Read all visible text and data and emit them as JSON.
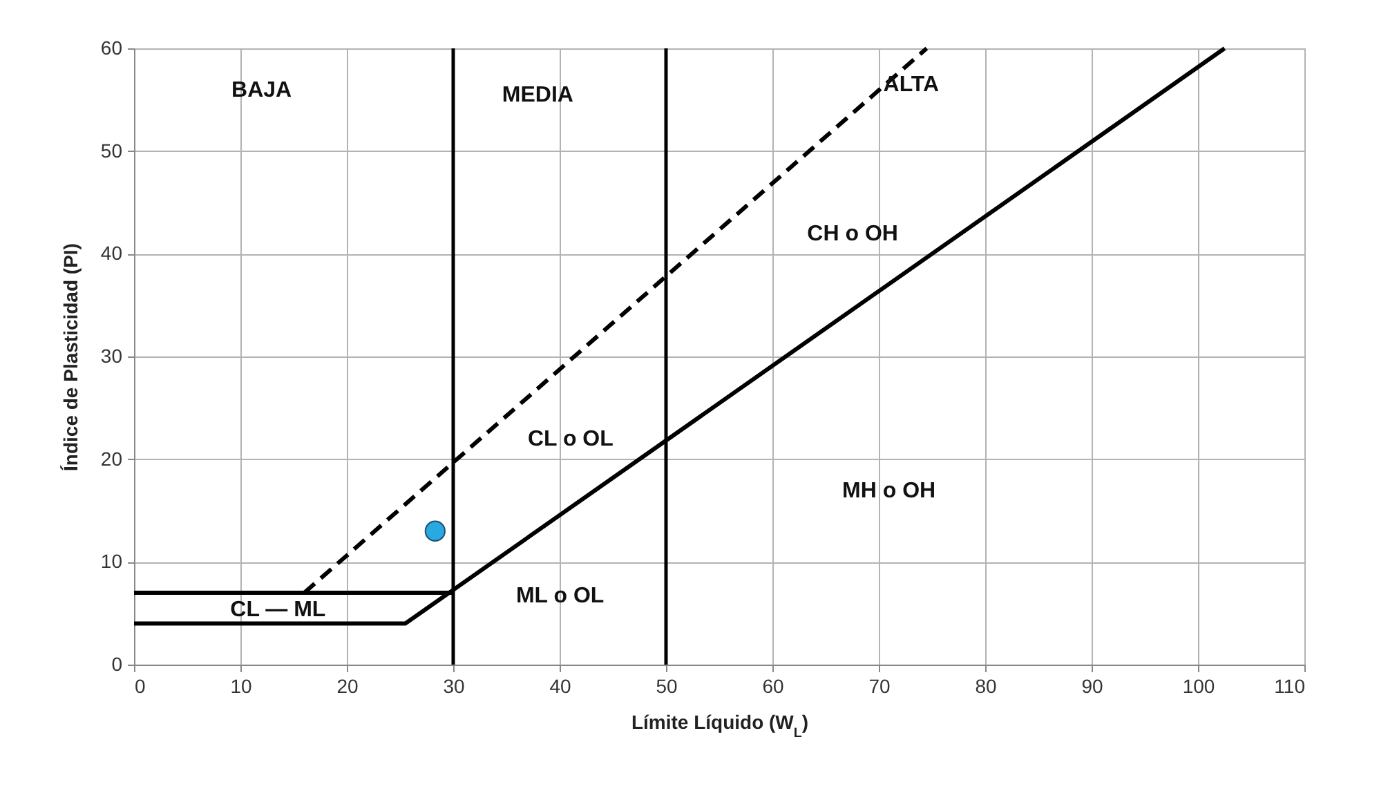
{
  "chart_data": {
    "type": "line",
    "xlabel": "Límite Líquido (W$_{L}$)",
    "ylabel": "Índice de Plasticidad (PI)",
    "xlim": [
      0,
      110
    ],
    "xticks": [
      0,
      10,
      20,
      30,
      40,
      50,
      60,
      70,
      80,
      90,
      100,
      110
    ],
    "ylim": [
      0,
      60
    ],
    "yticks": [
      0,
      10,
      20,
      30,
      40,
      50,
      60
    ],
    "grid": true,
    "series": [
      {
        "type": "line",
        "color": "#000000",
        "line_style": "solid",
        "x": [
          0,
          25.5,
          102.5
        ],
        "values": [
          4,
          4,
          60
        ]
      },
      {
        "type": "line",
        "color": "#000000",
        "line_style": "solid",
        "x": [
          0,
          30
        ],
        "values": [
          7,
          7
        ]
      },
      {
        "type": "line",
        "color": "#000000",
        "line_style": "dashed",
        "x": [
          16,
          74.5
        ],
        "values": [
          7,
          60
        ]
      },
      {
        "type": "scatter",
        "color": "#29a9e0",
        "marker": "circle",
        "x": [
          28.3
        ],
        "values": [
          13
        ]
      }
    ],
    "ref_lines": [
      {
        "axis": "x",
        "value": 30,
        "color": "#000000"
      },
      {
        "axis": "x",
        "value": 50,
        "color": "#000000"
      }
    ],
    "annotations": [
      "BAJA",
      "MEDIA",
      "ALTA",
      "CH  o OH",
      "CL  o  OL",
      "MH  o OH",
      "ML  o  OL",
      "CL — ML"
    ]
  }
}
